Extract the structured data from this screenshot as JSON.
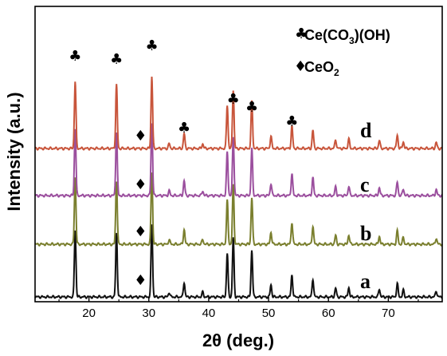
{
  "chart_data": {
    "type": "line",
    "xlabel": "2θ (deg.)",
    "ylabel": "Intensity (a.u.)",
    "xlim": [
      11,
      79
    ],
    "x_ticks": [
      20,
      30,
      40,
      50,
      60,
      70
    ],
    "y_ticks_visible": false,
    "grid": false,
    "series": [
      {
        "name": "a",
        "color": "#111111"
      },
      {
        "name": "b",
        "color": "#7a7f2e"
      },
      {
        "name": "c",
        "color": "#9b4f9e"
      },
      {
        "name": "d",
        "color": "#c8553b"
      }
    ],
    "peaks": [
      {
        "x": 17.7,
        "h": 1.0
      },
      {
        "x": 24.6,
        "h": 0.95
      },
      {
        "x": 30.5,
        "h": 1.08
      },
      {
        "x": 33.4,
        "h": 0.07
      },
      {
        "x": 35.9,
        "h": 0.22
      },
      {
        "x": 39.0,
        "h": 0.07
      },
      {
        "x": 43.1,
        "h": 0.65
      },
      {
        "x": 44.1,
        "h": 0.88
      },
      {
        "x": 47.2,
        "h": 0.7
      },
      {
        "x": 50.4,
        "h": 0.18
      },
      {
        "x": 53.9,
        "h": 0.33
      },
      {
        "x": 57.4,
        "h": 0.27
      },
      {
        "x": 61.2,
        "h": 0.13
      },
      {
        "x": 63.4,
        "h": 0.14
      },
      {
        "x": 68.5,
        "h": 0.12
      },
      {
        "x": 71.5,
        "h": 0.2
      },
      {
        "x": 72.5,
        "h": 0.1
      },
      {
        "x": 78.0,
        "h": 0.09
      }
    ],
    "legend": {
      "position": "top-right",
      "items": [
        {
          "symbol": "♣",
          "text": "Ce(CO3)(OH)"
        },
        {
          "symbol": "♦",
          "text": "CeO2"
        }
      ]
    },
    "annotations": {
      "club_marker": "♣",
      "diamond_marker": "♦",
      "club_x": [
        17.7,
        24.6,
        30.5,
        35.9,
        44.1,
        47.2,
        53.9
      ],
      "diamond_x": 28.6
    }
  }
}
